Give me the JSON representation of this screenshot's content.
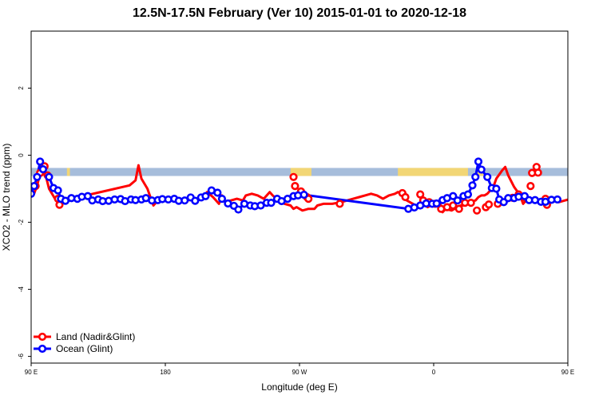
{
  "chart_data": {
    "type": "line",
    "title": "12.5N-17.5N February (Ver 10)   2015-01-01 to 2020-12-18",
    "xlabel": "Longitude (deg E)",
    "ylabel": "XCO2 - MLO trend (ppm)",
    "xlim": [
      90,
      450
    ],
    "ylim": [
      -6.2,
      3.7
    ],
    "x_ticks": [
      {
        "value": 90,
        "label": "90 E"
      },
      {
        "value": 180,
        "label": "180"
      },
      {
        "value": 270,
        "label": "90 W"
      },
      {
        "value": 360,
        "label": "0"
      },
      {
        "value": 450,
        "label": "90 E"
      },
      {
        "value": 540,
        "label": "180"
      }
    ],
    "y_ticks": [
      {
        "value": 2,
        "label": "2"
      },
      {
        "value": 0,
        "label": "0"
      },
      {
        "value": -2,
        "label": "-2"
      },
      {
        "value": -4,
        "label": "-4"
      },
      {
        "value": -6,
        "label": "-6"
      }
    ],
    "legend": {
      "position": "bottom-left"
    },
    "band": {
      "y_range": [
        -0.62,
        -0.38
      ],
      "ocean_color": "#a6bddb",
      "land_color": "#f2d675",
      "land_ranges": [
        [
          114,
          116
        ],
        [
          264,
          278
        ],
        [
          336,
          383
        ],
        [
          389,
          394
        ]
      ]
    },
    "series": [
      {
        "name": "Land (Nadir&Glint)",
        "color": "#ff0000",
        "x": [
          92,
          94,
          96,
          98,
          100,
          102,
          106,
          110,
          112,
          156,
          160,
          162,
          164,
          168,
          170,
          172,
          176,
          202,
          206,
          208,
          212,
          216,
          218,
          220,
          228,
          232,
          234,
          238,
          242,
          246,
          250,
          252,
          256,
          260,
          264,
          266,
          268,
          272,
          276,
          280,
          282,
          286,
          292,
          298,
          302,
          306,
          310,
          314,
          318,
          322,
          326,
          330,
          334,
          336,
          340,
          342,
          346,
          350,
          354,
          356,
          360,
          364,
          366,
          368,
          372,
          376,
          378,
          380,
          382,
          384,
          388,
          390,
          392,
          394,
          396,
          400,
          402,
          406,
          408,
          410,
          414,
          418,
          420,
          422,
          426,
          428,
          432,
          436,
          440,
          442,
          444,
          448,
          452
        ],
        "y": [
          -1.15,
          -0.9,
          -0.55,
          -0.3,
          -0.65,
          -1.0,
          -1.3,
          -1.45,
          -1.35,
          -0.9,
          -0.75,
          -0.3,
          -0.7,
          -1.0,
          -1.25,
          -1.5,
          -1.3,
          -1.35,
          -1.25,
          -1.1,
          -1.25,
          -1.45,
          -1.2,
          -1.4,
          -1.3,
          -1.35,
          -1.2,
          -1.15,
          -1.2,
          -1.3,
          -1.1,
          -1.2,
          -1.35,
          -1.45,
          -1.5,
          -1.6,
          -1.55,
          -1.65,
          -1.6,
          -1.6,
          -1.5,
          -1.45,
          -1.45,
          -1.4,
          -1.35,
          -1.3,
          -1.25,
          -1.2,
          -1.15,
          -1.2,
          -1.3,
          -1.2,
          -1.15,
          -1.1,
          -1.2,
          -1.35,
          -1.45,
          -1.55,
          -1.5,
          -1.55,
          -1.45,
          -1.4,
          -1.7,
          -1.6,
          -1.65,
          -1.55,
          -1.5,
          -1.5,
          -1.45,
          -1.4,
          -1.35,
          -1.25,
          -1.2,
          -1.2,
          -1.15,
          -0.95,
          -0.7,
          -0.45,
          -0.35,
          -0.6,
          -0.95,
          -1.2,
          -1.45,
          -1.35,
          -1.35,
          -1.3,
          -1.35,
          -1.35,
          -1.4,
          -1.35,
          -1.4,
          -1.35,
          -1.3
        ],
        "markers": [
          [
            93,
            -0.92
          ],
          [
            96,
            -0.53
          ],
          [
            99,
            -0.33
          ],
          [
            101,
            -0.6
          ],
          [
            108,
            -1.3
          ],
          [
            109,
            -1.48
          ],
          [
            266,
            -0.65
          ],
          [
            267,
            -0.92
          ],
          [
            271,
            -1.08
          ],
          [
            275,
            -1.25
          ],
          [
            276,
            -1.3
          ],
          [
            297,
            -1.45
          ],
          [
            339,
            -1.13
          ],
          [
            341,
            -1.25
          ],
          [
            351,
            -1.17
          ],
          [
            353,
            -1.35
          ],
          [
            357,
            -1.4
          ],
          [
            361,
            -1.45
          ],
          [
            365,
            -1.6
          ],
          [
            369,
            -1.55
          ],
          [
            373,
            -1.5
          ],
          [
            377,
            -1.6
          ],
          [
            381,
            -1.42
          ],
          [
            385,
            -1.42
          ],
          [
            389,
            -1.65
          ],
          [
            395,
            -1.55
          ],
          [
            397,
            -1.47
          ],
          [
            403,
            -1.45
          ],
          [
            413,
            -1.27
          ],
          [
            417,
            -1.17
          ],
          [
            420,
            -1.25
          ],
          [
            425,
            -0.92
          ],
          [
            426,
            -0.53
          ],
          [
            429,
            -0.35
          ],
          [
            430,
            -0.52
          ],
          [
            435,
            -1.3
          ],
          [
            436,
            -1.48
          ]
        ]
      },
      {
        "name": "Ocean (Glint)",
        "color": "#0000ff",
        "x": [],
        "y": [],
        "markers": [
          [
            90,
            -1.15
          ],
          [
            92,
            -0.92
          ],
          [
            94,
            -0.65
          ],
          [
            96,
            -0.19
          ],
          [
            98,
            -0.42
          ],
          [
            102,
            -0.65
          ],
          [
            105,
            -0.98
          ],
          [
            108,
            -1.05
          ],
          [
            110,
            -1.3
          ],
          [
            113,
            -1.36
          ],
          [
            117,
            -1.28
          ],
          [
            121,
            -1.3
          ],
          [
            124,
            -1.24
          ],
          [
            128,
            -1.22
          ],
          [
            131,
            -1.35
          ],
          [
            135,
            -1.32
          ],
          [
            138,
            -1.37
          ],
          [
            142,
            -1.36
          ],
          [
            146,
            -1.32
          ],
          [
            150,
            -1.31
          ],
          [
            153,
            -1.37
          ],
          [
            157,
            -1.32
          ],
          [
            160,
            -1.34
          ],
          [
            164,
            -1.32
          ],
          [
            167,
            -1.28
          ],
          [
            171,
            -1.35
          ],
          [
            175,
            -1.34
          ],
          [
            178,
            -1.31
          ],
          [
            182,
            -1.32
          ],
          [
            186,
            -1.3
          ],
          [
            189,
            -1.36
          ],
          [
            193,
            -1.35
          ],
          [
            197,
            -1.26
          ],
          [
            200,
            -1.36
          ],
          [
            204,
            -1.26
          ],
          [
            207,
            -1.22
          ],
          [
            211,
            -1.05
          ],
          [
            215,
            -1.12
          ],
          [
            218,
            -1.3
          ],
          [
            222,
            -1.44
          ],
          [
            226,
            -1.51
          ],
          [
            229,
            -1.62
          ],
          [
            233,
            -1.45
          ],
          [
            237,
            -1.5
          ],
          [
            240,
            -1.52
          ],
          [
            244,
            -1.5
          ],
          [
            248,
            -1.42
          ],
          [
            251,
            -1.42
          ],
          [
            255,
            -1.3
          ],
          [
            258,
            -1.37
          ],
          [
            262,
            -1.3
          ],
          [
            266,
            -1.22
          ],
          [
            269,
            -1.2
          ],
          [
            273,
            -1.18
          ],
          [
            343,
            -1.6
          ],
          [
            347,
            -1.56
          ],
          [
            351,
            -1.5
          ],
          [
            355,
            -1.44
          ],
          [
            359,
            -1.45
          ],
          [
            362,
            -1.44
          ],
          [
            366,
            -1.34
          ],
          [
            369,
            -1.28
          ],
          [
            373,
            -1.22
          ],
          [
            376,
            -1.35
          ],
          [
            380,
            -1.22
          ],
          [
            383,
            -1.17
          ],
          [
            386,
            -0.9
          ],
          [
            388,
            -0.65
          ],
          [
            390,
            -0.19
          ],
          [
            392,
            -0.43
          ],
          [
            396,
            -0.65
          ],
          [
            399,
            -0.98
          ],
          [
            402,
            -1.0
          ],
          [
            404,
            -1.32
          ],
          [
            407,
            -1.4
          ],
          [
            410,
            -1.28
          ],
          [
            414,
            -1.28
          ],
          [
            417,
            -1.24
          ],
          [
            421,
            -1.22
          ],
          [
            424,
            -1.34
          ],
          [
            428,
            -1.34
          ],
          [
            432,
            -1.39
          ],
          [
            435,
            -1.39
          ],
          [
            439,
            -1.33
          ],
          [
            443,
            -1.32
          ]
        ]
      }
    ]
  }
}
